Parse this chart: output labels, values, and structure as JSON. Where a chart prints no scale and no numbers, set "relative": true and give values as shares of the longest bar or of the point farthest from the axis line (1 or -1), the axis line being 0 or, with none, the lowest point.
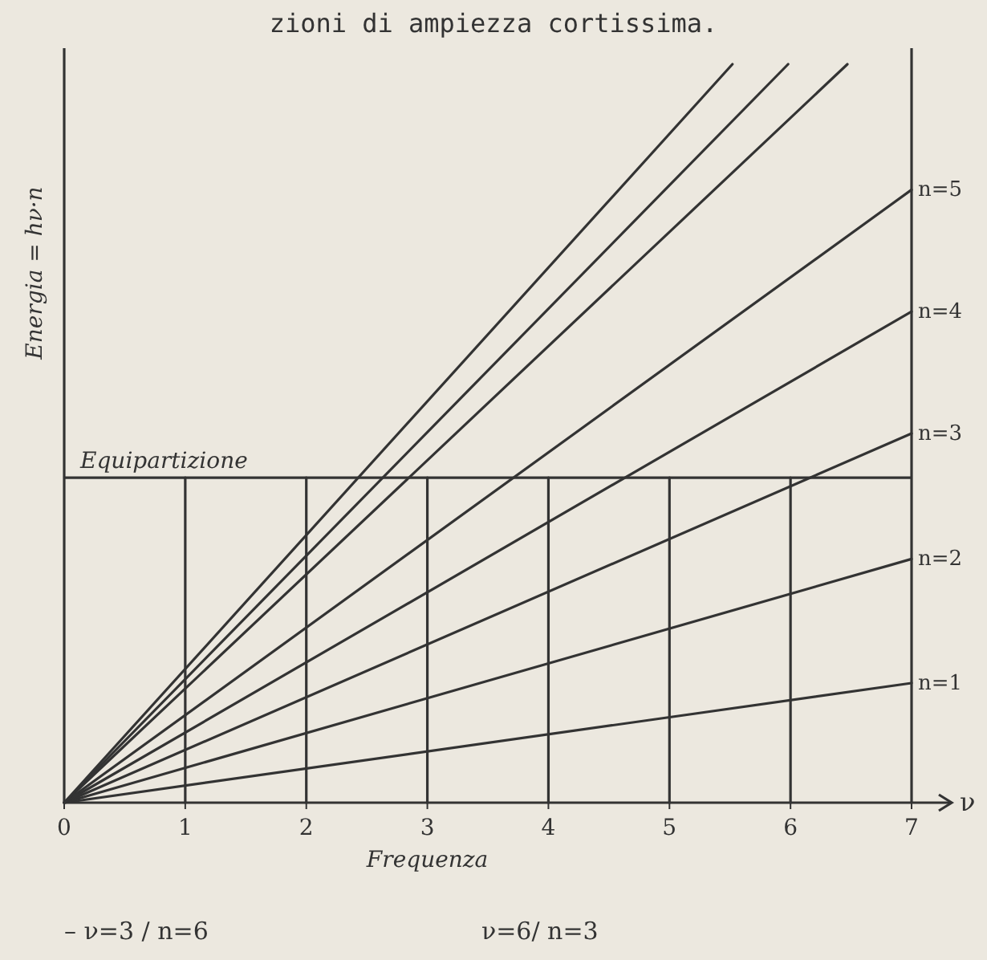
{
  "chart_data": {
    "type": "line",
    "relative": true,
    "title": "zioni di ampiezza cortissima.",
    "xlabel": "Frequenza",
    "ylabel": "Energia = hν·n",
    "xlim": [
      0,
      7
    ],
    "xticks": [
      0,
      1,
      2,
      3,
      4,
      5,
      6,
      7
    ],
    "marker": "none",
    "line_style": "solid",
    "grid": false,
    "ref_lines": [
      {
        "axis": "y",
        "value": 0.44,
        "label": "Equipartizione",
        "color": "#333333"
      }
    ],
    "annotations": [
      "ν",
      "– ν=3 / n=6",
      "ν=6/ n=3"
    ],
    "series": [
      {
        "name": "n=1",
        "color": "#333333",
        "x": [
          0,
          7
        ],
        "values": [
          0,
          0.162
        ]
      },
      {
        "name": "n=2",
        "color": "#333333",
        "x": [
          0,
          7
        ],
        "values": [
          0,
          0.33
        ]
      },
      {
        "name": "n=3",
        "color": "#333333",
        "x": [
          0,
          7
        ],
        "values": [
          0,
          0.5
        ]
      },
      {
        "name": "n=4",
        "color": "#333333",
        "x": [
          0,
          7
        ],
        "values": [
          0,
          0.665
        ]
      },
      {
        "name": "n=5",
        "color": "#333333",
        "x": [
          0,
          7
        ],
        "values": [
          0,
          0.83
        ]
      },
      {
        "color": "#333333",
        "x": [
          0,
          6.47
        ],
        "values": [
          0,
          1
        ]
      },
      {
        "color": "#333333",
        "x": [
          0,
          5.98
        ],
        "values": [
          0,
          1
        ]
      },
      {
        "color": "#333333",
        "x": [
          0,
          5.52
        ],
        "values": [
          0,
          1
        ]
      },
      {
        "color": "#333333",
        "x": [
          1,
          1
        ],
        "values": [
          0,
          0.44
        ]
      },
      {
        "color": "#333333",
        "x": [
          2,
          2
        ],
        "values": [
          0,
          0.44
        ]
      },
      {
        "color": "#333333",
        "x": [
          3,
          3
        ],
        "values": [
          0,
          0.44
        ]
      },
      {
        "color": "#333333",
        "x": [
          4,
          4
        ],
        "values": [
          0,
          0.44
        ]
      },
      {
        "color": "#333333",
        "x": [
          5,
          5
        ],
        "values": [
          0,
          0.44
        ]
      },
      {
        "color": "#333333",
        "x": [
          6,
          6
        ],
        "values": [
          0,
          0.44
        ]
      }
    ]
  }
}
